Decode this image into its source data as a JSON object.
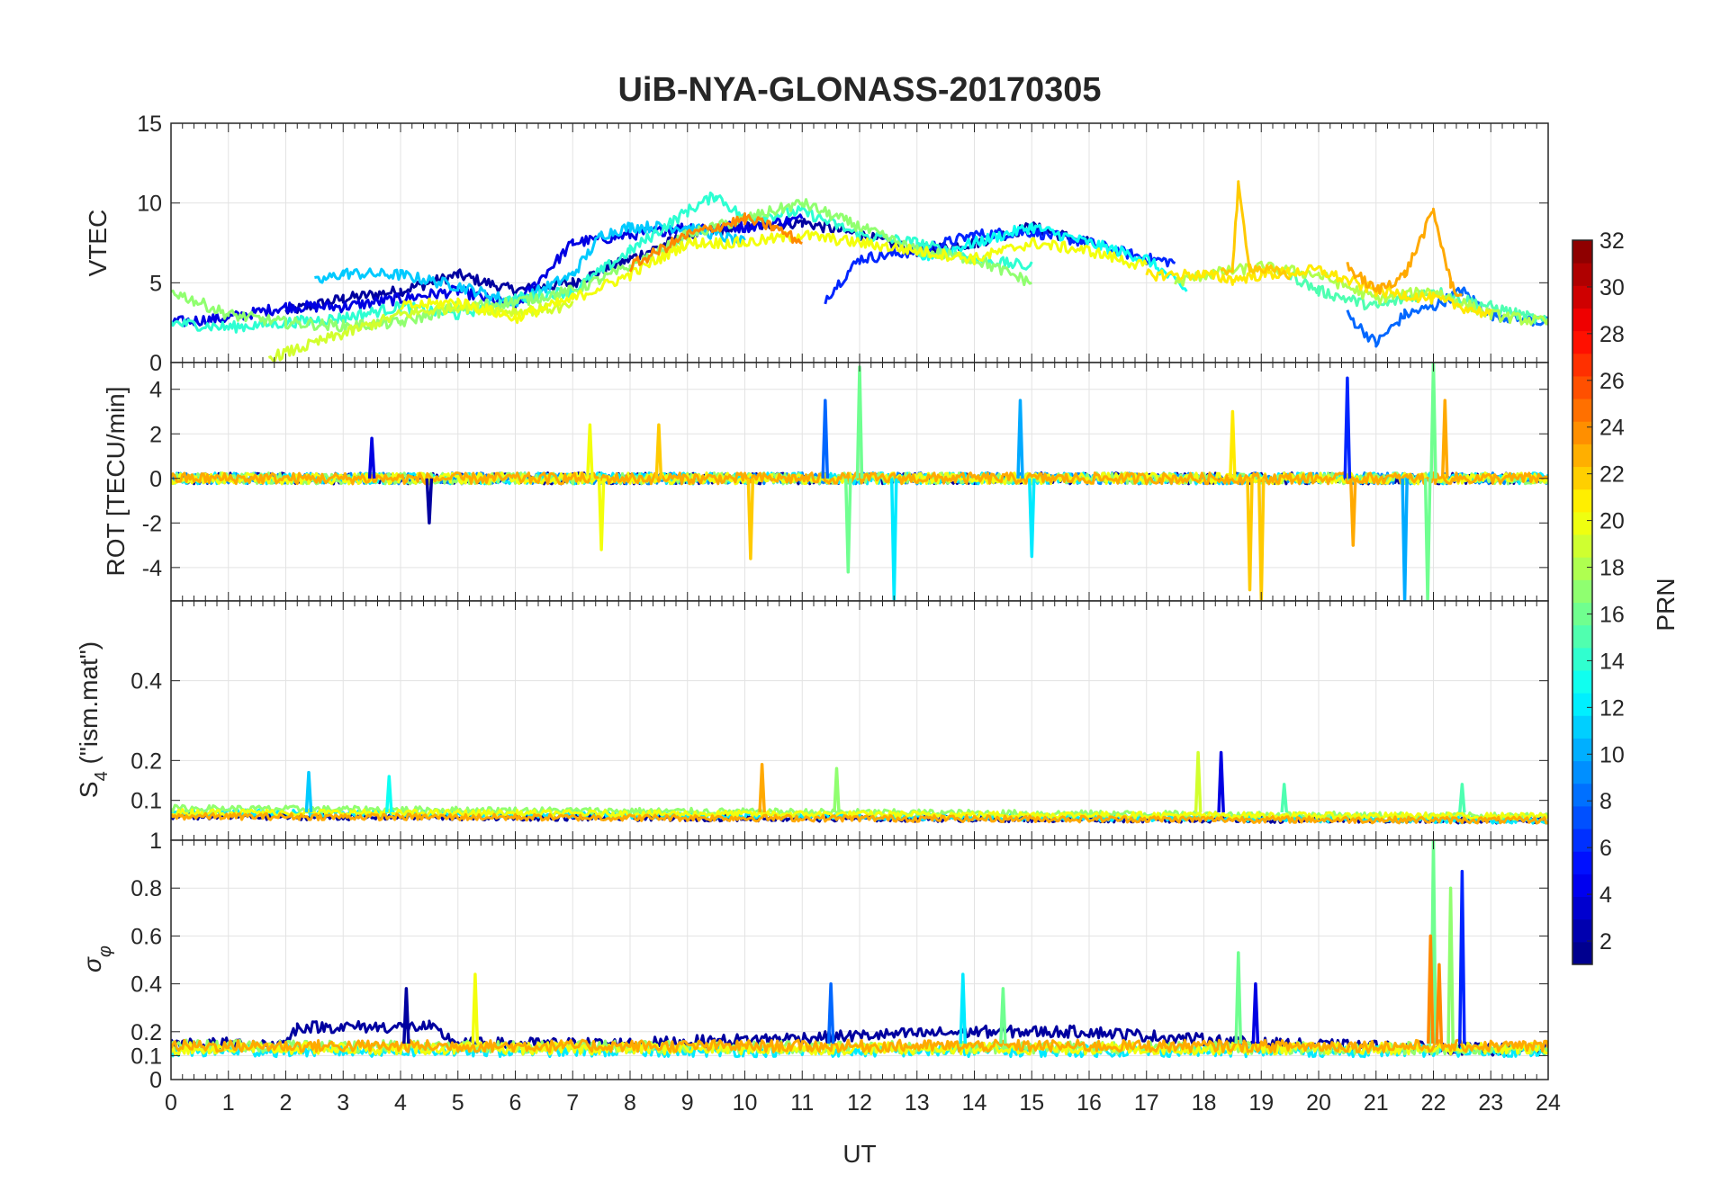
{
  "figure": {
    "title": "UiB-NYA-GLONASS-20170305",
    "xlabel": "UT",
    "x_ticks": [
      0,
      1,
      2,
      3,
      4,
      5,
      6,
      7,
      8,
      9,
      10,
      11,
      12,
      13,
      14,
      15,
      16,
      17,
      18,
      19,
      20,
      21,
      22,
      23,
      24
    ],
    "xlim": [
      0,
      24
    ]
  },
  "colorbar": {
    "label": "PRN",
    "range": [
      1,
      32
    ],
    "ticks": [
      2,
      4,
      6,
      8,
      10,
      12,
      14,
      16,
      18,
      20,
      22,
      24,
      26,
      28,
      30,
      32
    ],
    "colormap": "jet",
    "levels": 32
  },
  "chart_data": [
    {
      "type": "line",
      "panel": "vtec",
      "ylabel": "VTEC",
      "ylim": [
        0,
        15
      ],
      "y_ticks": [
        0,
        5,
        10,
        15
      ],
      "grid": true,
      "series": [
        {
          "prn": 2,
          "x": [
            2,
            3,
            4,
            5,
            6,
            7,
            8,
            9,
            10,
            11,
            12,
            13,
            14,
            15,
            16
          ],
          "y": [
            3.2,
            4,
            4.5,
            5.5,
            4.5,
            5,
            6.5,
            8,
            8.5,
            8.8,
            8,
            7,
            7.5,
            8.5,
            7.5
          ]
        },
        {
          "prn": 4,
          "x": [
            0,
            1,
            2,
            3,
            4,
            5,
            6,
            7,
            8,
            9,
            10,
            11
          ],
          "y": [
            2.5,
            2.8,
            3.5,
            3.5,
            4,
            4.5,
            3.5,
            7.5,
            8,
            8.5,
            8.5,
            9
          ]
        },
        {
          "prn": 6,
          "x": [
            11.4,
            12,
            13,
            14,
            15,
            16,
            17,
            17.5
          ],
          "y": [
            4,
            6.5,
            7,
            8,
            8.2,
            7.5,
            6.5,
            6.3
          ]
        },
        {
          "prn": 8,
          "x": [
            20.5,
            21,
            21.5,
            22,
            22.5,
            23,
            24
          ],
          "y": [
            3,
            1.2,
            3,
            3.5,
            4.5,
            3,
            2.5
          ]
        },
        {
          "prn": 11,
          "x": [
            2.5,
            3,
            4,
            5,
            6,
            7,
            7.5,
            8,
            9,
            10
          ],
          "y": [
            5,
            5.6,
            5.5,
            4.8,
            3.8,
            5.5,
            8,
            8.5,
            8.5,
            7.5
          ]
        },
        {
          "prn": 13,
          "x": [
            13,
            14,
            15,
            16,
            17,
            17.7
          ],
          "y": [
            6.5,
            7.5,
            8.5,
            7.5,
            6.5,
            4.5
          ]
        },
        {
          "prn": 14,
          "x": [
            0,
            1,
            2,
            3,
            4,
            5,
            6,
            7,
            8,
            9,
            9.5,
            10,
            11,
            12,
            13,
            14,
            15
          ],
          "y": [
            2.5,
            2.2,
            2.5,
            2.8,
            3.5,
            3,
            4,
            4.5,
            7,
            9.5,
            10.5,
            9,
            9.5,
            8,
            7.5,
            6.5,
            6
          ]
        },
        {
          "prn": 15,
          "x": [
            19.5,
            20,
            21,
            22,
            23,
            24
          ],
          "y": [
            5.5,
            4.5,
            3.5,
            4.5,
            3.5,
            2.5
          ]
        },
        {
          "prn": 17,
          "x": [
            0,
            1,
            2,
            3,
            4,
            5,
            6,
            7,
            8,
            9,
            10,
            11,
            12,
            13,
            14,
            15
          ],
          "y": [
            4.5,
            3,
            2.5,
            2.3,
            2.5,
            3.5,
            3.8,
            4.5,
            6,
            8,
            9,
            10,
            8.5,
            7,
            6.5,
            5
          ]
        },
        {
          "prn": 18,
          "x": [
            17.5,
            18,
            19,
            20,
            21,
            22,
            23,
            24
          ],
          "y": [
            5,
            5.5,
            6,
            5.5,
            4,
            4.5,
            3,
            2.5
          ]
        },
        {
          "prn": 19,
          "x": [
            1.7,
            2,
            3,
            4,
            5,
            6,
            7
          ],
          "y": [
            0.3,
            0.6,
            1.8,
            3,
            3.5,
            3.2,
            3.5
          ]
        },
        {
          "prn": 20,
          "x": [
            4,
            5,
            6,
            7,
            8,
            9,
            10,
            11,
            14,
            15,
            16,
            17
          ],
          "y": [
            3.5,
            3.8,
            2.8,
            4,
            5.5,
            7.5,
            7.5,
            8,
            6.5,
            7.5,
            7,
            6
          ]
        },
        {
          "prn": 21,
          "x": [
            17,
            18,
            18.5,
            19,
            20,
            21,
            22,
            23
          ],
          "y": [
            5.5,
            5.5,
            5.2,
            5.5,
            5.8,
            4.5,
            4,
            3
          ]
        },
        {
          "prn": 22,
          "x": [
            18.3,
            18.5,
            18.6,
            18.8,
            19.5
          ],
          "y": [
            5.5,
            6,
            11,
            6,
            5.5
          ]
        },
        {
          "prn": 23,
          "x": [
            20.5,
            21,
            21.5,
            22,
            22.3,
            22.5
          ],
          "y": [
            6,
            4.5,
            5.5,
            9.5,
            5,
            4
          ]
        },
        {
          "prn": 24,
          "x": [
            8,
            9,
            10,
            10.5,
            11
          ],
          "y": [
            6,
            8,
            9,
            8.5,
            7.5
          ]
        }
      ]
    },
    {
      "type": "line",
      "panel": "rot",
      "ylabel": "ROT [TECU/min]",
      "ylim": [
        -5.5,
        5.2
      ],
      "y_ticks": [
        -4,
        -2,
        0,
        2,
        4
      ],
      "grid": true,
      "note_series": "noise around zero with spikes",
      "series": [
        {
          "prn": 2,
          "x": [
            0,
            24
          ],
          "y": [
            0,
            0
          ]
        },
        {
          "prn": 9,
          "x": [
            0,
            24
          ],
          "y": [
            0,
            0
          ]
        },
        {
          "prn": 12,
          "x": [
            0,
            24
          ],
          "y": [
            0,
            0
          ]
        },
        {
          "prn": 17,
          "x": [
            0,
            24
          ],
          "y": [
            0,
            0
          ]
        },
        {
          "prn": 20,
          "x": [
            0,
            24
          ],
          "y": [
            0,
            0
          ]
        },
        {
          "prn": 23,
          "x": [
            0,
            24
          ],
          "y": [
            0,
            0
          ]
        }
      ],
      "spikes": [
        {
          "prn": 4,
          "x": 3.5,
          "y": 1.8
        },
        {
          "prn": 2,
          "x": 4.5,
          "y": -2
        },
        {
          "prn": 20,
          "x": 7.3,
          "y": 2.4
        },
        {
          "prn": 20,
          "x": 7.5,
          "y": -3.2
        },
        {
          "prn": 22,
          "x": 8.5,
          "y": 2.4
        },
        {
          "prn": 22,
          "x": 10.1,
          "y": -3.6
        },
        {
          "prn": 16,
          "x": 12.0,
          "y": 5.0
        },
        {
          "prn": 12,
          "x": 12.6,
          "y": -5.5
        },
        {
          "prn": 8,
          "x": 11.4,
          "y": 3.5
        },
        {
          "prn": 16,
          "x": 11.8,
          "y": -4.2
        },
        {
          "prn": 10,
          "x": 14.8,
          "y": 3.5
        },
        {
          "prn": 12,
          "x": 15.0,
          "y": -3.5
        },
        {
          "prn": 21,
          "x": 18.5,
          "y": 3.0
        },
        {
          "prn": 22,
          "x": 18.8,
          "y": -5.0
        },
        {
          "prn": 22,
          "x": 19.0,
          "y": -5.5
        },
        {
          "prn": 6,
          "x": 20.5,
          "y": 4.5
        },
        {
          "prn": 10,
          "x": 21.5,
          "y": -5.5
        },
        {
          "prn": 16,
          "x": 22.0,
          "y": 5.2
        },
        {
          "prn": 16,
          "x": 21.9,
          "y": -5.5
        },
        {
          "prn": 23,
          "x": 22.2,
          "y": 3.5
        },
        {
          "prn": 23,
          "x": 20.6,
          "y": -3.0
        }
      ]
    },
    {
      "type": "line",
      "panel": "s4",
      "ylabel": "S_4 (\"ism.mat\")",
      "ylim": [
        0,
        0.6
      ],
      "y_ticks": [
        0.1,
        0.2,
        0.4
      ],
      "grid": true,
      "series": [
        {
          "prn": 2,
          "x": [
            0,
            24
          ],
          "y": [
            0.06,
            0.05
          ]
        },
        {
          "prn": 12,
          "x": [
            0,
            24
          ],
          "y": [
            0.07,
            0.05
          ]
        },
        {
          "prn": 17,
          "x": [
            0,
            24
          ],
          "y": [
            0.08,
            0.06
          ]
        },
        {
          "prn": 20,
          "x": [
            0,
            24
          ],
          "y": [
            0.07,
            0.06
          ]
        },
        {
          "prn": 23,
          "x": [
            0,
            24
          ],
          "y": [
            0.06,
            0.05
          ]
        }
      ],
      "spikes": [
        {
          "prn": 11,
          "x": 2.4,
          "y": 0.17
        },
        {
          "prn": 13,
          "x": 3.8,
          "y": 0.16
        },
        {
          "prn": 23,
          "x": 10.3,
          "y": 0.19
        },
        {
          "prn": 17,
          "x": 11.6,
          "y": 0.18
        },
        {
          "prn": 19,
          "x": 17.9,
          "y": 0.22
        },
        {
          "prn": 4,
          "x": 18.3,
          "y": 0.22
        },
        {
          "prn": 15,
          "x": 19.4,
          "y": 0.14
        },
        {
          "prn": 15,
          "x": 22.5,
          "y": 0.14
        }
      ]
    },
    {
      "type": "line",
      "panel": "sigma_phi",
      "ylabel": "σ_φ",
      "ylim": [
        0,
        1
      ],
      "y_ticks": [
        0,
        0.1,
        0.2,
        0.4,
        0.6,
        0.8,
        1
      ],
      "grid": true,
      "series": [
        {
          "prn": 2,
          "x": [
            0,
            2,
            2.2,
            4.5,
            5,
            8,
            14,
            16,
            19,
            24
          ],
          "y": [
            0.15,
            0.15,
            0.22,
            0.22,
            0.15,
            0.15,
            0.2,
            0.2,
            0.15,
            0.12
          ]
        },
        {
          "prn": 12,
          "x": [
            0,
            24
          ],
          "y": [
            0.12,
            0.12
          ]
        },
        {
          "prn": 17,
          "x": [
            0,
            24
          ],
          "y": [
            0.14,
            0.13
          ]
        },
        {
          "prn": 20,
          "x": [
            0,
            24
          ],
          "y": [
            0.13,
            0.13
          ]
        },
        {
          "prn": 23,
          "x": [
            0,
            24
          ],
          "y": [
            0.14,
            0.14
          ]
        }
      ],
      "spikes": [
        {
          "prn": 2,
          "x": 4.1,
          "y": 0.38
        },
        {
          "prn": 20,
          "x": 5.3,
          "y": 0.44
        },
        {
          "prn": 8,
          "x": 11.5,
          "y": 0.4
        },
        {
          "prn": 12,
          "x": 13.8,
          "y": 0.44
        },
        {
          "prn": 16,
          "x": 14.5,
          "y": 0.38
        },
        {
          "prn": 16,
          "x": 18.6,
          "y": 0.53
        },
        {
          "prn": 4,
          "x": 18.9,
          "y": 0.4
        },
        {
          "prn": 16,
          "x": 22.0,
          "y": 1.0
        },
        {
          "prn": 24,
          "x": 21.95,
          "y": 0.6
        },
        {
          "prn": 17,
          "x": 22.3,
          "y": 0.8
        },
        {
          "prn": 6,
          "x": 22.5,
          "y": 0.87
        },
        {
          "prn": 24,
          "x": 22.1,
          "y": 0.48
        }
      ]
    }
  ]
}
